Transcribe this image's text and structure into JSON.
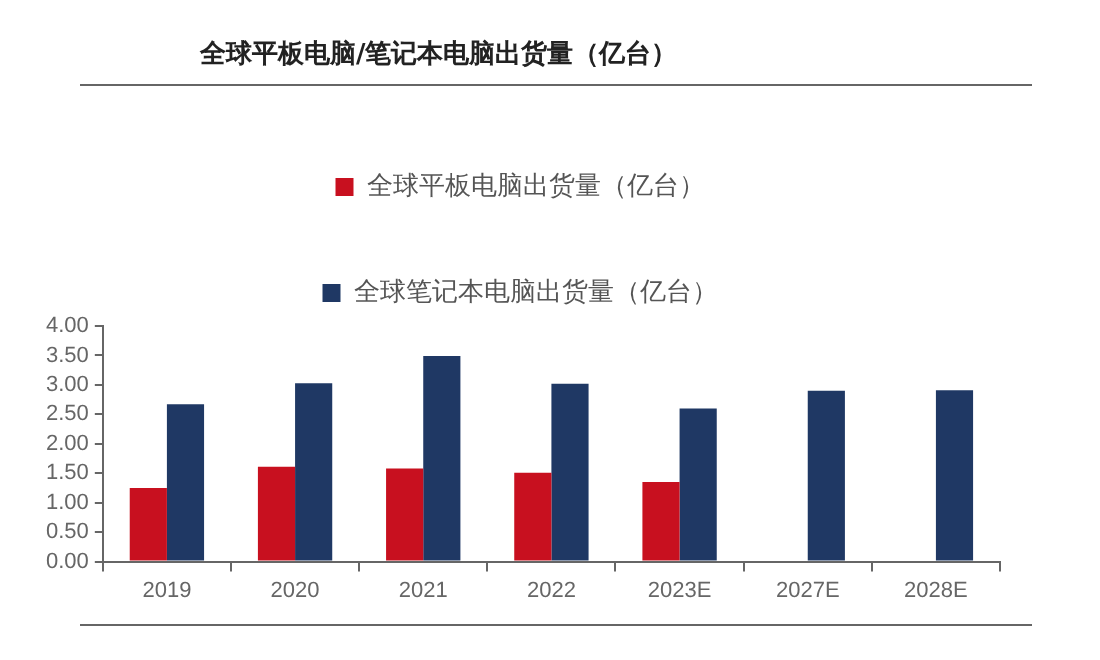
{
  "chart_data": {
    "type": "bar",
    "title": "全球平板电脑/笔记本电脑出货量（亿台）",
    "categories": [
      "2019",
      "2020",
      "2021",
      "2022",
      "2023E",
      "2027E",
      "2028E"
    ],
    "series": [
      {
        "name": "全球平板电脑出货量（亿台）",
        "color": "#c8101f",
        "values": [
          1.25,
          1.61,
          1.58,
          1.51,
          1.35,
          null,
          null
        ]
      },
      {
        "name": "全球笔记本电脑出货量（亿台）",
        "color": "#1f3864",
        "values": [
          2.67,
          3.03,
          3.49,
          3.02,
          2.6,
          2.9,
          2.91
        ]
      }
    ],
    "ylim": [
      0,
      4
    ],
    "yticks": [
      {
        "value": 0,
        "label": "0.00"
      },
      {
        "value": 0.5,
        "label": "0.50"
      },
      {
        "value": 1,
        "label": "1.00"
      },
      {
        "value": 1.5,
        "label": "1.50"
      },
      {
        "value": 2,
        "label": "2.00"
      },
      {
        "value": 2.5,
        "label": "2.50"
      },
      {
        "value": 3,
        "label": "3.00"
      },
      {
        "value": 3.5,
        "label": "3.50"
      },
      {
        "value": 4,
        "label": "4.00"
      }
    ],
    "grid": false,
    "legend": "top"
  }
}
